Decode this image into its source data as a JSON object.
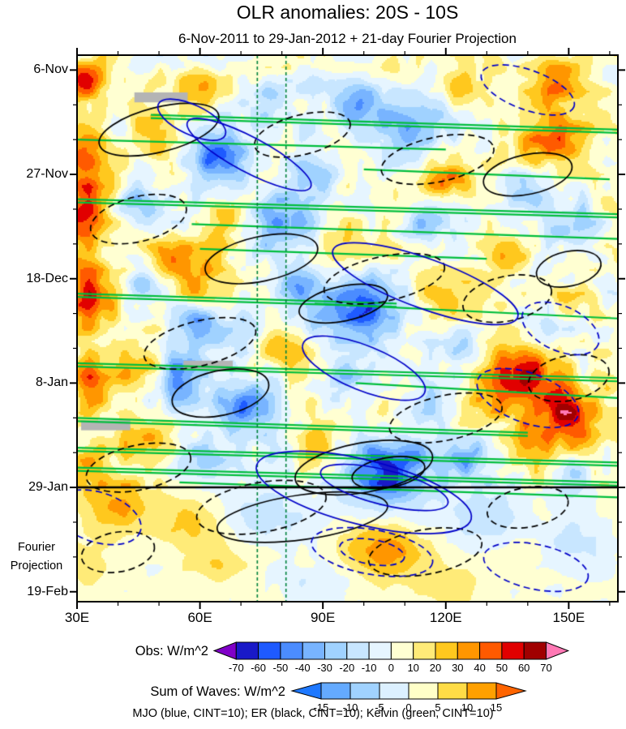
{
  "chart_data": {
    "type": "heatmap",
    "title": "OLR anomalies: 20S - 10S",
    "subtitle": "6-Nov-2011 to 29-Jan-2012 + 21-day Fourier Projection",
    "caption": "MJO (blue, CINT=10); ER (black, CINT=10); Kelvin (green, CINT=10)",
    "x_axis": {
      "tick_labels": [
        "30E",
        "60E",
        "90E",
        "120E",
        "150E"
      ],
      "tick_lons": [
        30,
        60,
        90,
        120,
        150
      ],
      "minor_step": 10,
      "range": [
        30,
        162
      ]
    },
    "y_axis": {
      "tick_labels": [
        "6-Nov",
        "27-Nov",
        "18-Dec",
        "8-Jan",
        "29-Jan",
        "19-Feb"
      ],
      "tick_days": [
        0,
        21,
        42,
        63,
        84,
        105
      ],
      "minor_step": 7,
      "range": [
        -3,
        107
      ]
    },
    "fourier_label": {
      "line1": "Fourier",
      "line2": "Projection"
    },
    "levels": [
      -70,
      -60,
      -50,
      -40,
      -30,
      -20,
      -10,
      0,
      10,
      20,
      30,
      40,
      50,
      60,
      70
    ],
    "obs_colorbar": {
      "label": "Obs: W/m^2",
      "tick_labels": [
        "-70",
        "-60",
        "-50",
        "-40",
        "-30",
        "-20",
        "-10",
        "0",
        "10",
        "20",
        "30",
        "40",
        "50",
        "60",
        "70"
      ],
      "colors": [
        "#8000C8",
        "#1919C8",
        "#1E5AFF",
        "#4B8CFF",
        "#78B4FF",
        "#A0D2FF",
        "#C8E6FF",
        "#E6F5FF",
        "#FFFFD2",
        "#FFEB78",
        "#FFC81E",
        "#FF9600",
        "#FF5A00",
        "#E10000",
        "#A00000",
        "#FF78B4"
      ]
    },
    "waves_colorbar": {
      "label": "Sum of Waves: W/m^2",
      "tick_labels": [
        "-15",
        "-10",
        "-5",
        "0",
        "5",
        "10",
        "15"
      ],
      "colors": [
        "#1E78FF",
        "#64AAFF",
        "#A0D2FF",
        "#DCF0FF",
        "#FFFFC8",
        "#FFDC46",
        "#FFA000",
        "#FF6400"
      ]
    },
    "field": {
      "base": 3,
      "missing_color": "#B4B4B4",
      "missing_rects": [
        {
          "lon": [
            44,
            57
          ],
          "day": [
            4.5,
            6.5
          ]
        },
        {
          "lon": [
            56,
            68
          ],
          "day": [
            58.5,
            60.5
          ]
        },
        {
          "lon": [
            31,
            43
          ],
          "day": [
            70.5,
            72.5
          ]
        }
      ],
      "noise": {
        "seed": 7,
        "amp1": 13,
        "nx1": 46,
        "ny1": 46,
        "amp2": 9,
        "nx2": 14,
        "ny2": 14,
        "damp_after_day": 84,
        "damp_factor": 0.3
      },
      "blobs": [
        [
          32,
          2,
          46,
          4,
          3
        ],
        [
          60,
          3,
          26,
          5,
          3
        ],
        [
          147,
          2,
          38,
          6,
          4
        ],
        [
          125,
          4,
          22,
          5,
          3
        ],
        [
          90,
          3,
          -20,
          4,
          2
        ],
        [
          78,
          6,
          -22,
          4,
          3
        ],
        [
          100,
          7,
          -46,
          6,
          4
        ],
        [
          115,
          10,
          -30,
          5,
          4
        ],
        [
          50,
          13,
          22,
          4,
          3
        ],
        [
          146,
          14,
          44,
          7,
          4
        ],
        [
          33,
          18,
          50,
          4,
          5
        ],
        [
          65,
          18,
          -52,
          5,
          4
        ],
        [
          87,
          21,
          -36,
          5,
          3
        ],
        [
          110,
          15,
          -26,
          5,
          3
        ],
        [
          120,
          22,
          30,
          6,
          3
        ],
        [
          140,
          24,
          -22,
          5,
          3
        ],
        [
          32,
          29,
          46,
          4,
          4
        ],
        [
          45,
          26,
          -28,
          4,
          3
        ],
        [
          66,
          31,
          25,
          4,
          3
        ],
        [
          80,
          31,
          -42,
          6,
          4
        ],
        [
          115,
          31,
          -25,
          4,
          3
        ],
        [
          150,
          31,
          -25,
          5,
          3
        ],
        [
          95,
          36,
          24,
          5,
          3
        ],
        [
          135,
          36,
          24,
          5,
          3
        ],
        [
          55,
          38,
          28,
          5,
          3
        ],
        [
          33,
          45,
          52,
          4,
          5
        ],
        [
          46,
          44,
          -30,
          3,
          3
        ],
        [
          60,
          44,
          28,
          4,
          3
        ],
        [
          84,
          44,
          -36,
          4,
          3
        ],
        [
          100,
          48,
          -56,
          7,
          5
        ],
        [
          120,
          46,
          26,
          5,
          3
        ],
        [
          150,
          47,
          30,
          4,
          3
        ],
        [
          145,
          51,
          -28,
          5,
          3
        ],
        [
          72,
          52,
          -30,
          4,
          3
        ],
        [
          60,
          51,
          -34,
          4,
          3
        ],
        [
          45,
          60,
          22,
          4,
          3
        ],
        [
          33,
          63,
          48,
          4,
          4
        ],
        [
          55,
          62,
          -48,
          4,
          4
        ],
        [
          80,
          57,
          30,
          5,
          3
        ],
        [
          95,
          62,
          -30,
          4,
          3
        ],
        [
          125,
          57,
          -34,
          4,
          3
        ],
        [
          138,
          62,
          58,
          8,
          6
        ],
        [
          150,
          70,
          46,
          5,
          4
        ],
        [
          118,
          66,
          -28,
          4,
          3
        ],
        [
          70,
          68,
          -42,
          5,
          4
        ],
        [
          45,
          75,
          30,
          5,
          3
        ],
        [
          88,
          76,
          28,
          4,
          3
        ],
        [
          105,
          81,
          -58,
          8,
          5
        ],
        [
          125,
          78,
          -36,
          5,
          3
        ],
        [
          140,
          76,
          28,
          4,
          3
        ],
        [
          60,
          80,
          -26,
          5,
          3
        ],
        [
          33,
          80,
          24,
          4,
          3
        ],
        [
          150,
          82,
          -24,
          4,
          3
        ],
        [
          40,
          88,
          26,
          6,
          4
        ],
        [
          58,
          91,
          22,
          6,
          4
        ],
        [
          75,
          90,
          -18,
          8,
          4
        ],
        [
          105,
          97,
          34,
          7,
          4
        ],
        [
          130,
          90,
          -18,
          7,
          4
        ],
        [
          90,
          103,
          -14,
          8,
          3
        ],
        [
          120,
          103,
          14,
          6,
          3
        ],
        [
          151,
          95,
          -18,
          5,
          4
        ],
        [
          33,
          100,
          16,
          4,
          3
        ],
        [
          65,
          99,
          14,
          5,
          3
        ]
      ]
    },
    "overlays": {
      "boundary_day": 84,
      "boundary_color": "#000000",
      "vertical_dashed_lines": {
        "lons": [
          74,
          81
        ],
        "color": "#00823C"
      },
      "mjo": {
        "color": "#0000C8",
        "ellipses": [
          [
            72,
            17,
            17,
            3.5,
            28,
            0
          ],
          [
            58,
            10,
            9,
            3,
            25,
            0
          ],
          [
            115,
            43,
            24,
            5,
            20,
            0
          ],
          [
            100,
            60,
            16,
            4.5,
            22,
            0
          ],
          [
            100,
            85,
            27,
            6.5,
            14,
            0
          ],
          [
            105,
            84,
            16,
            3.5,
            14,
            0
          ],
          [
            140,
            4,
            12,
            4,
            20,
            1
          ],
          [
            148,
            52,
            10,
            4.5,
            24,
            1
          ],
          [
            140,
            66,
            13,
            5,
            20,
            1
          ],
          [
            35,
            90,
            11,
            5,
            18,
            1
          ],
          [
            102,
            97,
            15,
            4.5,
            10,
            1
          ],
          [
            102,
            97,
            8,
            2.5,
            10,
            1
          ],
          [
            142,
            100,
            13,
            4.5,
            12,
            1
          ]
        ]
      },
      "er": {
        "color": "#000000",
        "ellipses": [
          [
            50,
            12,
            15,
            4.5,
            -14,
            0
          ],
          [
            85,
            13,
            12,
            4,
            -14,
            1
          ],
          [
            118,
            18,
            14,
            4.5,
            -12,
            1
          ],
          [
            140,
            21,
            11,
            4,
            -12,
            0
          ],
          [
            45,
            30,
            12,
            4.5,
            -14,
            1
          ],
          [
            75,
            38,
            14,
            4.5,
            -12,
            0
          ],
          [
            105,
            42,
            15,
            4.5,
            -12,
            1
          ],
          [
            95,
            47,
            11,
            3.5,
            -12,
            0
          ],
          [
            135,
            46,
            11,
            4.5,
            -12,
            1
          ],
          [
            150,
            40,
            8,
            3.5,
            -12,
            0
          ],
          [
            60,
            55,
            14,
            4.5,
            -14,
            1
          ],
          [
            65,
            65,
            12,
            4.5,
            -12,
            0
          ],
          [
            150,
            62,
            10,
            4.5,
            -12,
            1
          ],
          [
            120,
            70,
            14,
            4.5,
            -12,
            1
          ],
          [
            100,
            80,
            17,
            5,
            -10,
            0
          ],
          [
            106,
            81,
            9,
            3,
            -10,
            0
          ],
          [
            45,
            80,
            13,
            4.5,
            -12,
            1
          ],
          [
            75,
            88,
            16,
            5,
            -10,
            1
          ],
          [
            85,
            90,
            21,
            4.5,
            -8,
            0
          ],
          [
            115,
            97,
            14,
            4.5,
            -10,
            1
          ],
          [
            140,
            88,
            10,
            4,
            -10,
            1
          ],
          [
            40,
            97,
            9,
            4,
            -10,
            1
          ]
        ]
      },
      "kelvin": {
        "color": "#00BE3C",
        "lines": [
          [
            48,
            9,
            162,
            12,
            1
          ],
          [
            30,
            14,
            120,
            16,
            0
          ],
          [
            100,
            20,
            160,
            22,
            0
          ],
          [
            30,
            26,
            162,
            29,
            1
          ],
          [
            58,
            31,
            162,
            34,
            0
          ],
          [
            60,
            36,
            130,
            38,
            0
          ],
          [
            30,
            45,
            108,
            47,
            1
          ],
          [
            88,
            47,
            162,
            50,
            0
          ],
          [
            30,
            59,
            162,
            62,
            1
          ],
          [
            98,
            63,
            162,
            66,
            0
          ],
          [
            30,
            70,
            140,
            73,
            1
          ],
          [
            30,
            76,
            162,
            79,
            1
          ],
          [
            30,
            80,
            162,
            83,
            1
          ],
          [
            55,
            83,
            162,
            86,
            0
          ]
        ]
      }
    }
  }
}
